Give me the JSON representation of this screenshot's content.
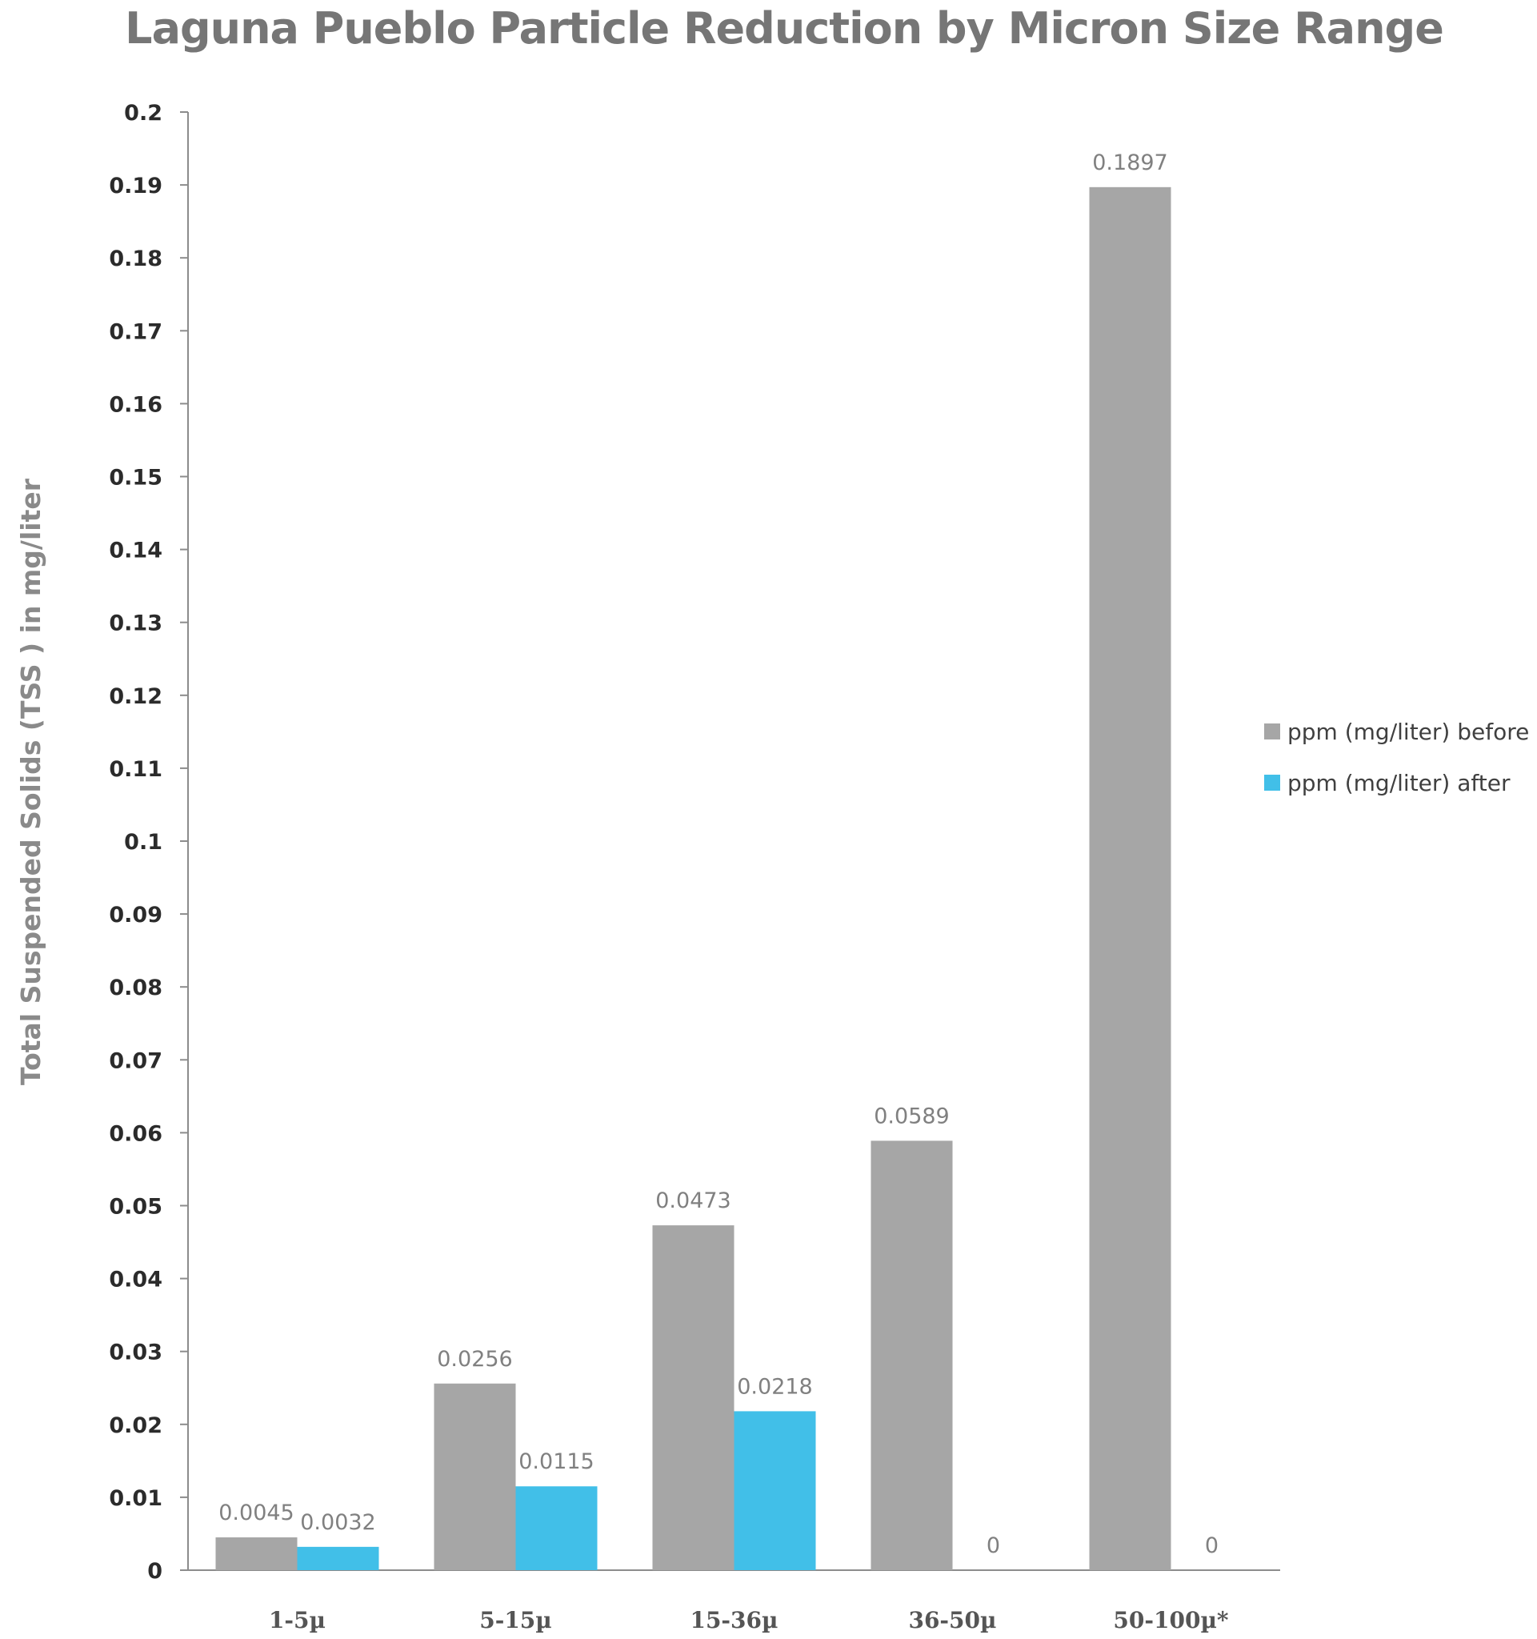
{
  "chart_data": {
    "type": "bar",
    "title": "Laguna Pueblo Particle Reduction by Micron Size Range",
    "xlabel": "",
    "ylabel": "Total Suspended Solids (TSS ) in mg/liter",
    "categories": [
      "1-5µ",
      "5-15µ",
      "15-36µ",
      "36-50µ",
      "50-100µ*"
    ],
    "series": [
      {
        "name": "ppm (mg/liter) before",
        "color": "#a6a6a6",
        "values": [
          0.0045,
          0.0256,
          0.0473,
          0.0589,
          0.1897
        ],
        "labels": [
          "0.0045",
          "0.0256",
          "0.0473",
          "0.0589",
          "0.1897"
        ]
      },
      {
        "name": "ppm (mg/liter) after",
        "color": "#41bfe8",
        "values": [
          0.0032,
          0.0115,
          0.0218,
          0,
          0
        ],
        "labels": [
          "0.0032",
          "0.0115",
          "0.0218",
          "0",
          "0"
        ]
      }
    ],
    "ylim": [
      0,
      0.2
    ],
    "yticks": [
      "0",
      "0.01",
      "0.02",
      "0.03",
      "0.04",
      "0.05",
      "0.06",
      "0.07",
      "0.08",
      "0.09",
      "0.1",
      "0.11",
      "0.12",
      "0.13",
      "0.14",
      "0.15",
      "0.16",
      "0.17",
      "0.18",
      "0.19",
      "0.2"
    ],
    "grid": false,
    "legend_position": "right"
  }
}
